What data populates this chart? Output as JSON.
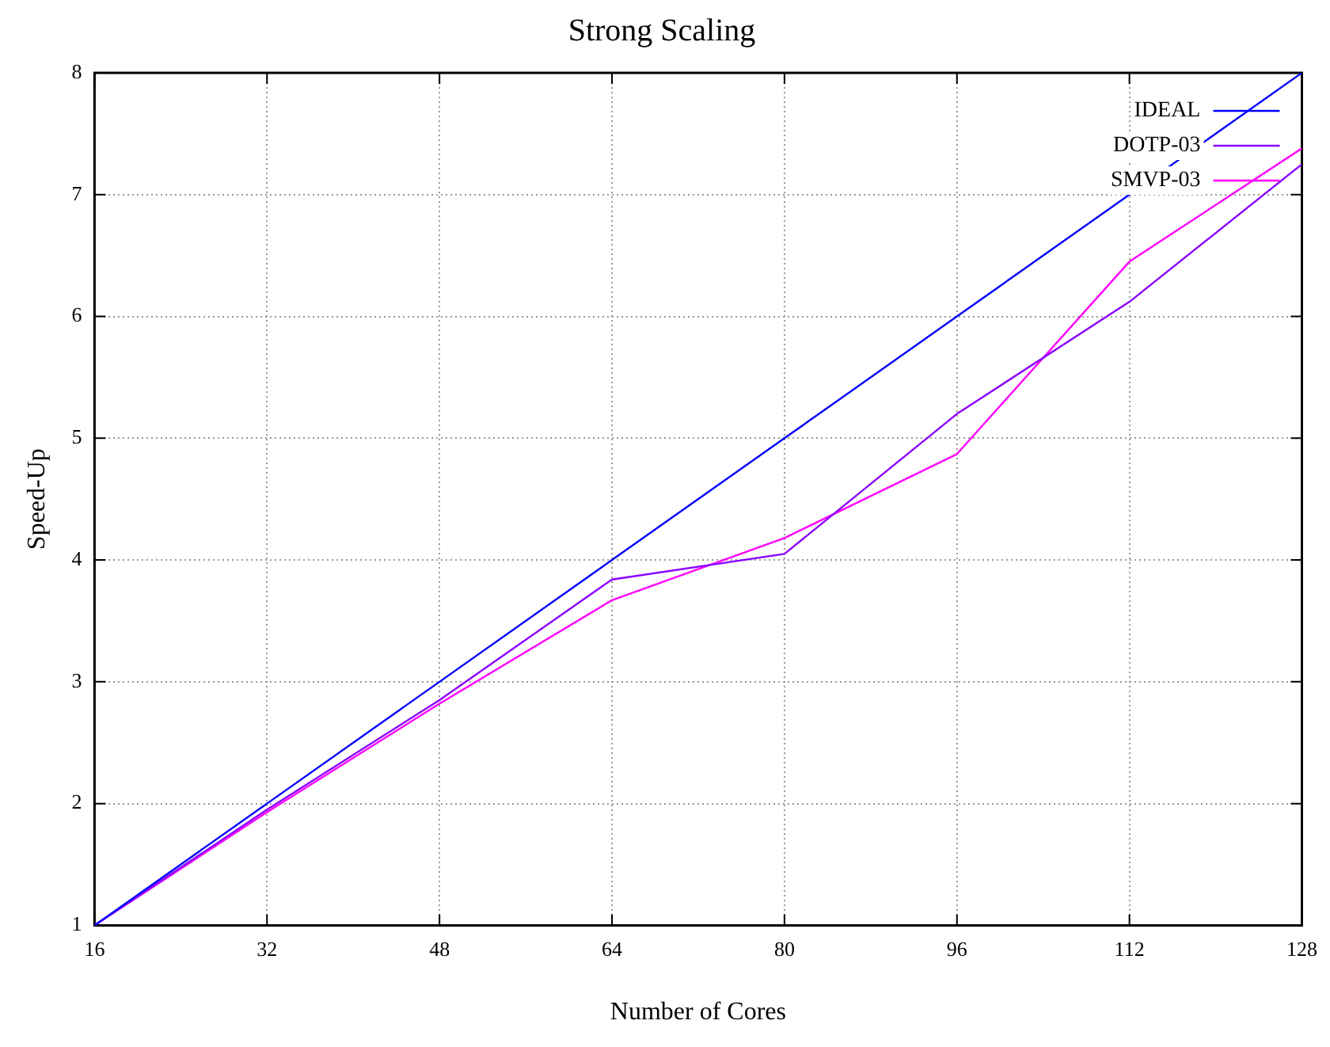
{
  "chart_data": {
    "type": "line",
    "title": "Strong Scaling",
    "xlabel": "Number of Cores",
    "ylabel": "Speed-Up",
    "x": [
      16,
      32,
      48,
      64,
      80,
      96,
      112,
      128
    ],
    "series": [
      {
        "name": "IDEAL",
        "color": "#0000ff",
        "values": [
          1,
          2,
          3,
          4,
          5,
          6,
          7,
          8
        ]
      },
      {
        "name": "DOTP-03",
        "color": "#8a00ff",
        "values": [
          1,
          1.95,
          2.85,
          3.84,
          4.05,
          5.2,
          6.12,
          7.25
        ]
      },
      {
        "name": "SMVP-03",
        "color": "#ff00ff",
        "values": [
          1,
          1.93,
          2.82,
          3.67,
          4.18,
          4.87,
          6.45,
          7.38
        ]
      }
    ],
    "xlim": [
      16,
      128
    ],
    "xticks": [
      16,
      32,
      48,
      64,
      80,
      96,
      112,
      128
    ],
    "ylim": [
      1,
      8
    ],
    "yticks": [
      1,
      2,
      3,
      4,
      5,
      6,
      7,
      8
    ],
    "grid": true,
    "legend": "top right",
    "marker": "none",
    "line_style": "solid"
  }
}
